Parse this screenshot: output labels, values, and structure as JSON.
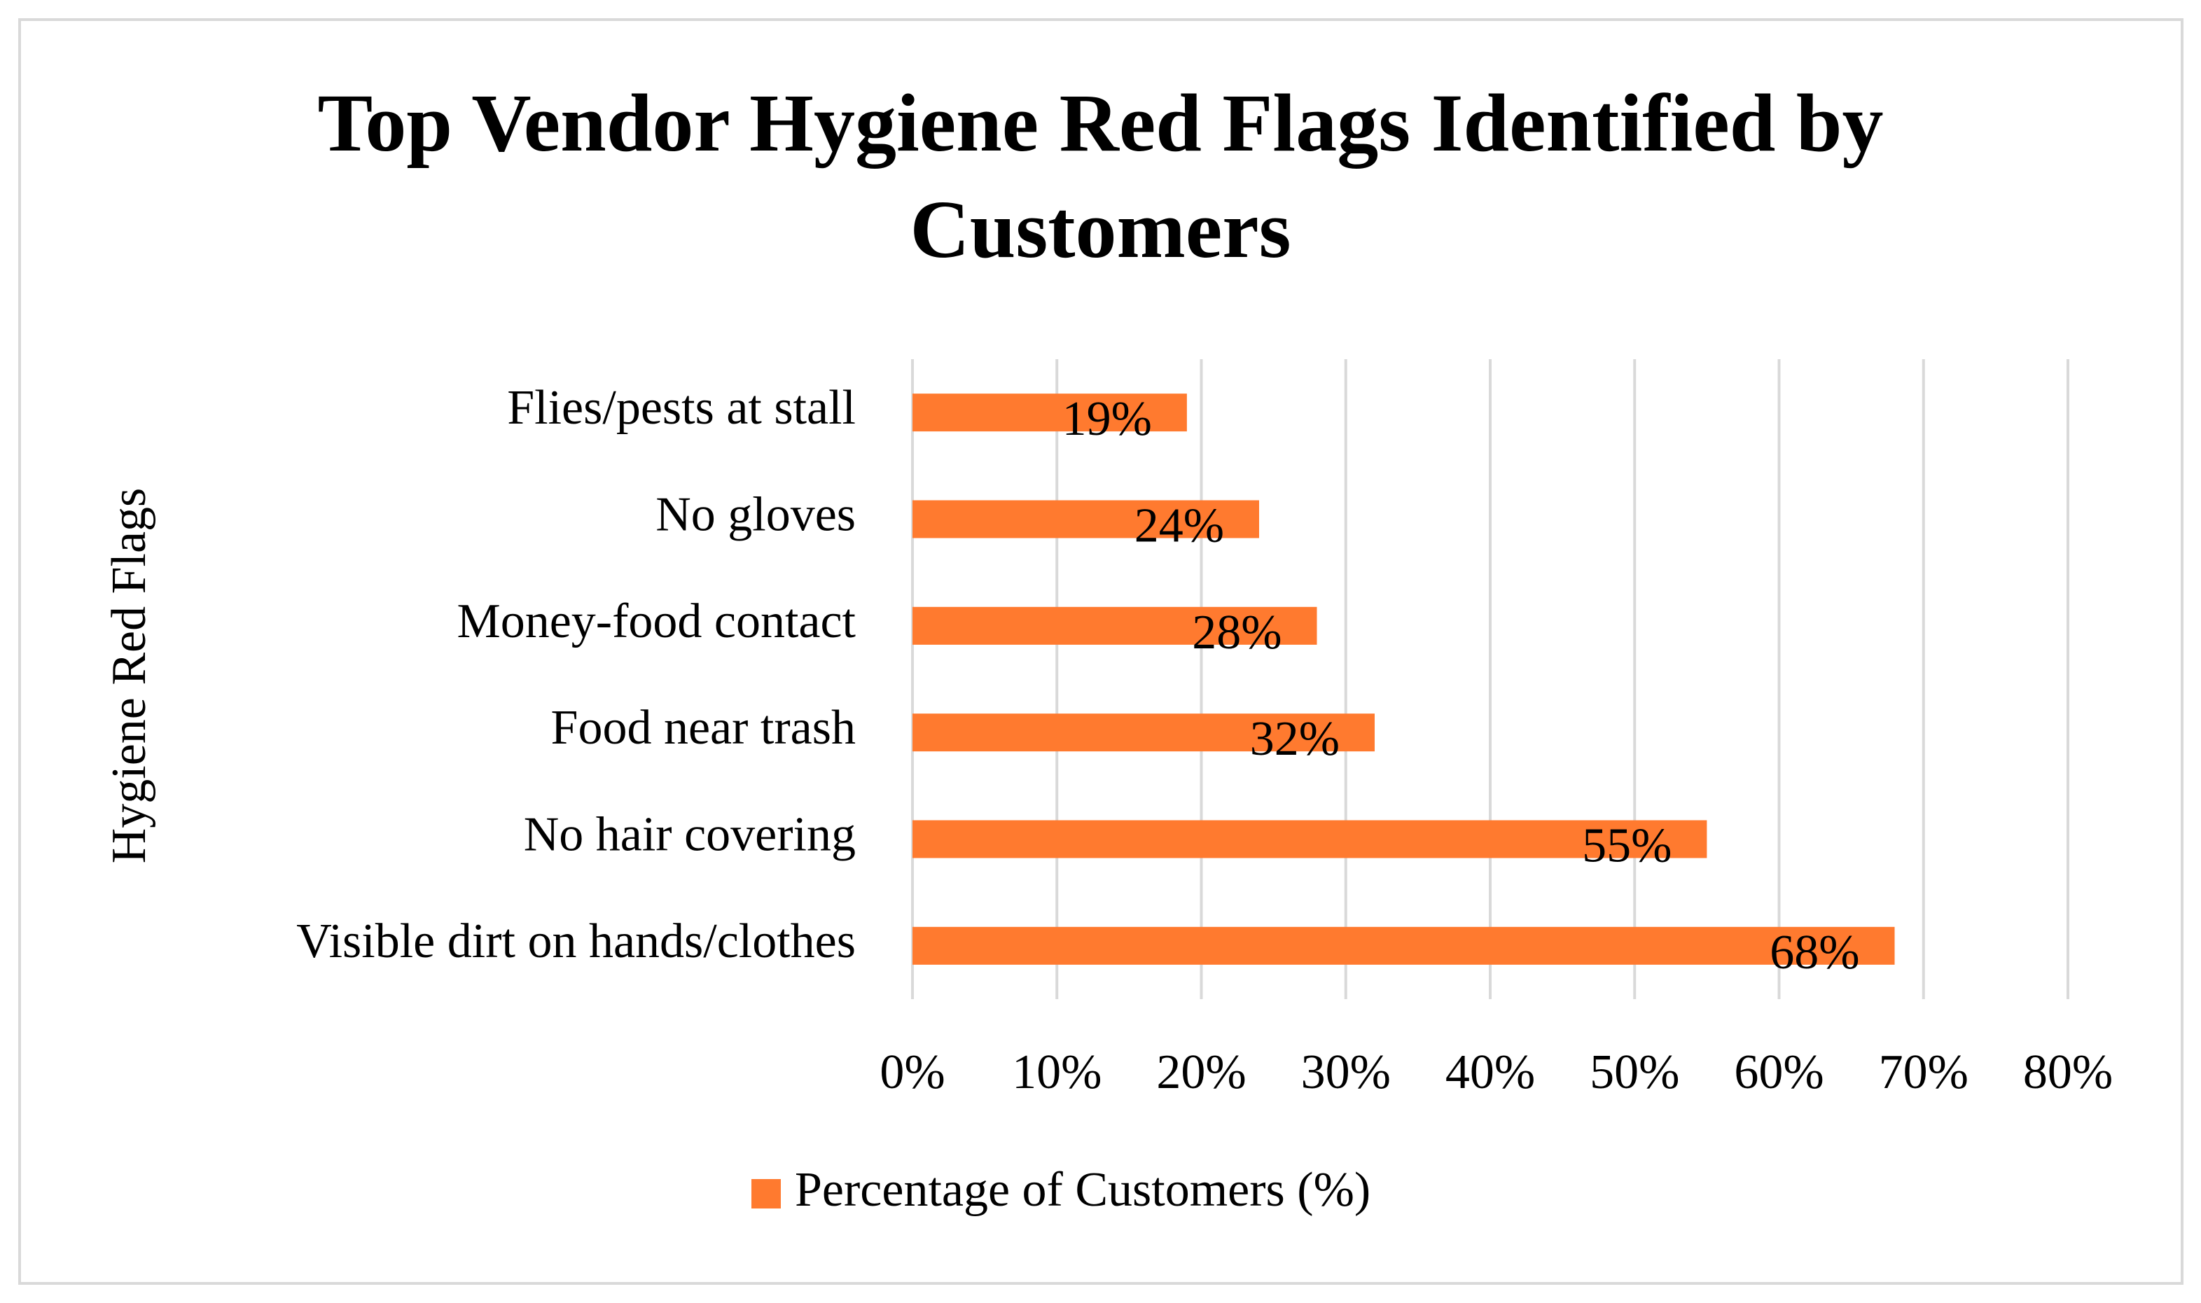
{
  "chart_data": {
    "type": "bar",
    "orientation": "horizontal",
    "title": "Top Vendor Hygiene Red Flags Identified by Customers",
    "y_axis_label": "Hygiene Red Flags",
    "categories": [
      "Flies/pests at stall",
      "No gloves",
      "Money-food contact",
      "Food near trash",
      "No hair covering",
      "Visible dirt on hands/clothes"
    ],
    "series": [
      {
        "name": "Percentage of Customers (%)",
        "color": "#ff7a2f",
        "values": [
          19,
          24,
          28,
          32,
          55,
          68
        ],
        "value_labels": [
          "19%",
          "24%",
          "28%",
          "32%",
          "55%",
          "68%"
        ]
      }
    ],
    "xlim": [
      0,
      80
    ],
    "xticks": [
      {
        "value": 0,
        "label": "0%"
      },
      {
        "value": 10,
        "label": "10%"
      },
      {
        "value": 20,
        "label": "20%"
      },
      {
        "value": 30,
        "label": "30%"
      },
      {
        "value": 40,
        "label": "40%"
      },
      {
        "value": 50,
        "label": "50%"
      },
      {
        "value": 60,
        "label": "60%"
      },
      {
        "value": 70,
        "label": "70%"
      },
      {
        "value": 80,
        "label": "80%"
      }
    ],
    "grid": true,
    "legend": "bottom"
  }
}
